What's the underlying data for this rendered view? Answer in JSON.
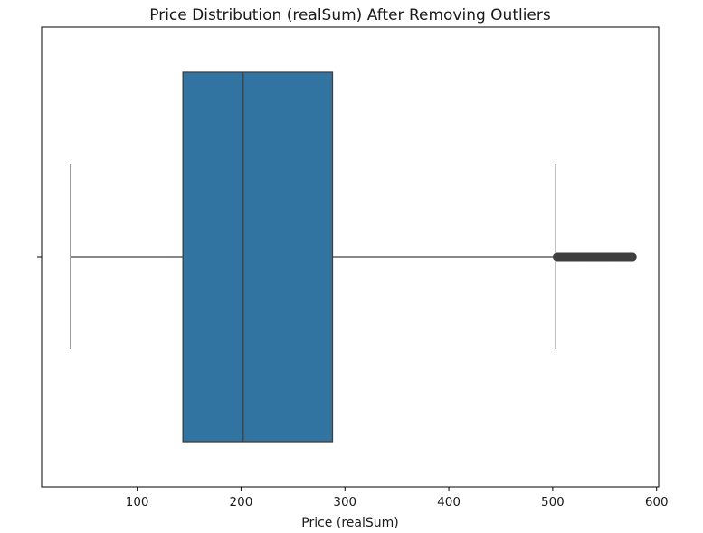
{
  "chart_data": {
    "type": "box",
    "orientation": "horizontal",
    "title": "Price Distribution (realSum) After Removing Outliers",
    "xlabel": "Price (realSum)",
    "ylabel": "",
    "xlim": [
      8,
      602
    ],
    "xticks": [
      100,
      200,
      300,
      400,
      500,
      600
    ],
    "grid": false,
    "box": {
      "whisker_low": 36,
      "q1": 144,
      "median": 202,
      "q3": 288,
      "whisker_high": 503,
      "fliers_range": [
        504,
        577
      ],
      "fill_color": "#3274a1",
      "line_color": "#3f3f3f"
    }
  }
}
